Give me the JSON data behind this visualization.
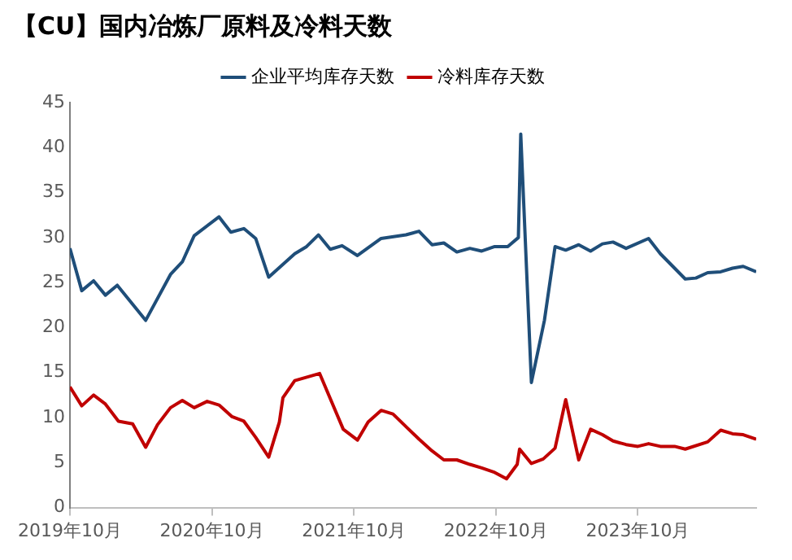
{
  "chart_data": {
    "type": "line",
    "title": "【CU】国内冶炼厂原料及冷料天数",
    "xlim": [
      "2019-10",
      "2024-08"
    ],
    "xticks": [
      {
        "value": "2019-10",
        "label": "2019年10月"
      },
      {
        "value": "2020-10",
        "label": "2020年10月"
      },
      {
        "value": "2021-10",
        "label": "2021年10月"
      },
      {
        "value": "2022-10",
        "label": "2022年10月"
      },
      {
        "value": "2023-10",
        "label": "2023年10月"
      }
    ],
    "ylim": [
      0,
      45
    ],
    "yticks": [
      0,
      5,
      10,
      15,
      20,
      25,
      30,
      35,
      40,
      45
    ],
    "grid": false,
    "legend": "top",
    "marker": "none",
    "line_style": "solid",
    "series": [
      {
        "name": "企业平均库存天数",
        "color": "#1f4e79",
        "x": [
          "2019-10-01",
          "2019-11-01",
          "2019-12-01",
          "2020-01-01",
          "2020-02-01",
          "2020-04-13",
          "2020-06-16",
          "2020-07-16",
          "2020-08-16",
          "2020-10-19",
          "2020-11-19",
          "2020-12-22",
          "2021-01-22",
          "2021-02-25",
          "2021-05-01",
          "2021-06-01",
          "2021-07-01",
          "2021-08-01",
          "2021-09-01",
          "2021-10-10",
          "2021-12-10",
          "2022-02-13",
          "2022-03-16",
          "2022-04-19",
          "2022-05-19",
          "2022-06-22",
          "2022-07-25",
          "2022-08-25",
          "2022-09-28",
          "2022-11-01",
          "2022-11-28",
          "2022-12-04",
          "2023-01-01",
          "2023-02-04",
          "2023-03-01",
          "2023-03-28",
          "2023-05-01",
          "2023-06-01",
          "2023-07-01",
          "2023-07-28",
          "2023-09-01",
          "2023-10-28",
          "2023-11-28",
          "2024-02-01",
          "2024-02-28",
          "2024-03-28",
          "2024-05-01",
          "2024-06-01",
          "2024-06-28",
          "2024-08-01"
        ],
        "values": [
          28.8,
          24.1,
          25.2,
          23.6,
          24.7,
          20.8,
          25.9,
          27.3,
          30.2,
          32.3,
          30.6,
          31.0,
          29.9,
          25.6,
          28.2,
          29.0,
          30.3,
          28.7,
          29.1,
          28.0,
          29.9,
          30.3,
          30.7,
          29.2,
          29.4,
          28.4,
          28.8,
          28.5,
          29.0,
          29.0,
          30.0,
          41.5,
          13.9,
          20.8,
          29.0,
          28.6,
          29.2,
          28.5,
          29.3,
          29.5,
          28.8,
          29.9,
          28.2,
          25.4,
          25.5,
          26.1,
          26.2,
          26.6,
          26.8,
          26.2
        ]
      },
      {
        "name": "冷料库存天数",
        "color": "#c00000",
        "x": [
          "2019-10-01",
          "2019-11-01",
          "2019-12-01",
          "2020-01-01",
          "2020-02-04",
          "2020-03-10",
          "2020-04-13",
          "2020-05-13",
          "2020-06-16",
          "2020-07-16",
          "2020-08-16",
          "2020-09-19",
          "2020-10-19",
          "2020-11-22",
          "2020-12-22",
          "2021-01-22",
          "2021-02-25",
          "2021-03-22",
          "2021-04-01",
          "2021-05-01",
          "2021-07-04",
          "2021-09-04",
          "2021-10-10",
          "2021-11-07",
          "2021-12-10",
          "2022-01-10",
          "2022-02-13",
          "2022-03-16",
          "2022-04-19",
          "2022-05-19",
          "2022-06-22",
          "2022-07-25",
          "2022-08-25",
          "2022-09-28",
          "2022-10-28",
          "2022-11-25",
          "2022-12-01",
          "2023-01-01",
          "2023-02-01",
          "2023-03-01",
          "2023-03-28",
          "2023-05-01",
          "2023-06-01",
          "2023-07-01",
          "2023-07-28",
          "2023-09-01",
          "2023-10-01",
          "2023-10-28",
          "2023-11-28",
          "2024-01-04",
          "2024-02-01",
          "2024-03-28",
          "2024-05-01",
          "2024-06-01",
          "2024-06-28",
          "2024-08-01"
        ],
        "values": [
          13.4,
          11.3,
          12.5,
          11.5,
          9.6,
          9.3,
          6.7,
          9.2,
          11.1,
          11.9,
          11.1,
          11.8,
          11.4,
          10.1,
          9.6,
          7.8,
          5.6,
          9.5,
          12.2,
          14.1,
          14.9,
          8.7,
          7.5,
          9.5,
          10.8,
          10.4,
          9.0,
          7.6,
          6.3,
          5.3,
          5.3,
          4.8,
          4.4,
          3.9,
          3.2,
          4.8,
          6.5,
          4.9,
          5.4,
          6.6,
          12.0,
          5.3,
          8.7,
          8.1,
          7.4,
          7.0,
          6.8,
          7.1,
          6.8,
          6.8,
          6.5,
          7.3,
          8.6,
          8.2,
          8.1,
          7.6
        ]
      }
    ]
  }
}
